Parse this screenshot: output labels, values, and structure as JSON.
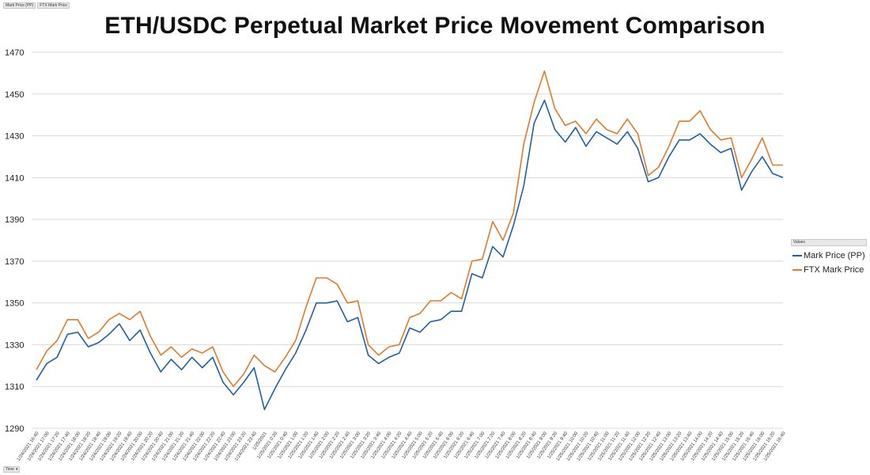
{
  "field_buttons": [
    "Mark Price (PP)",
    "FTX Mark Price"
  ],
  "axis_field_button": "Time",
  "legend_header": "Values",
  "chart_data": {
    "type": "line",
    "title": "ETH/USDC Perpetual Market Price Movement Comparison",
    "xlabel": "",
    "ylabel": "",
    "ylim": [
      1290,
      1470
    ],
    "yticks": [
      1290,
      1310,
      1330,
      1350,
      1370,
      1390,
      1410,
      1430,
      1450,
      1470
    ],
    "grid": true,
    "legend_position": "right",
    "categories": [
      "1/24/2021 16:40",
      "1/24/2021 17:00",
      "1/24/2021 17:20",
      "1/24/2021 17:40",
      "1/24/2021 18:00",
      "1/24/2021 18:20",
      "1/24/2021 18:40",
      "1/24/2021 19:00",
      "1/24/2021 19:20",
      "1/24/2021 19:40",
      "1/24/2021 20:00",
      "1/24/2021 20:20",
      "1/24/2021 20:40",
      "1/24/2021 21:00",
      "1/24/2021 21:20",
      "1/24/2021 21:40",
      "1/24/2021 22:00",
      "1/24/2021 22:20",
      "1/24/2021 22:40",
      "1/24/2021 23:00",
      "1/24/2021 23:20",
      "1/24/2021 23:40",
      "1/25/2021",
      "1/25/2021 0:20",
      "1/25/2021 0:40",
      "1/25/2021 1:00",
      "1/25/2021 1:20",
      "1/25/2021 1:40",
      "1/25/2021 2:00",
      "1/25/2021 2:20",
      "1/25/2021 2:40",
      "1/25/2021 3:00",
      "1/25/2021 3:20",
      "1/25/2021 3:40",
      "1/25/2021 4:00",
      "1/25/2021 4:20",
      "1/25/2021 4:40",
      "1/25/2021 5:00",
      "1/25/2021 5:20",
      "1/25/2021 5:40",
      "1/25/2021 6:00",
      "1/25/2021 6:20",
      "1/25/2021 6:40",
      "1/25/2021 7:00",
      "1/25/2021 7:20",
      "1/25/2021 7:40",
      "1/25/2021 8:00",
      "1/25/2021 8:20",
      "1/25/2021 8:40",
      "1/25/2021 9:00",
      "1/25/2021 9:20",
      "1/25/2021 9:40",
      "1/25/2021 10:00",
      "1/25/2021 10:20",
      "1/25/2021 10:40",
      "1/25/2021 11:00",
      "1/25/2021 11:20",
      "1/25/2021 11:40",
      "1/25/2021 12:00",
      "1/25/2021 12:20",
      "1/25/2021 12:40",
      "1/25/2021 13:00",
      "1/25/2021 13:20",
      "1/25/2021 13:40",
      "1/25/2021 14:00",
      "1/25/2021 14:20",
      "1/25/2021 14:40",
      "1/25/2021 15:00",
      "1/25/2021 15:20",
      "1/25/2021 15:40",
      "1/25/2021 16:00",
      "1/25/2021 16:20",
      "1/25/2021 16:40"
    ],
    "series": [
      {
        "name": "Mark Price (PP)",
        "color": "#1f5fa6",
        "values": [
          1313,
          1321,
          1324,
          1335,
          1336,
          1329,
          1331,
          1335,
          1340,
          1332,
          1337,
          1326,
          1317,
          1323,
          1318,
          1324,
          1319,
          1324,
          1312,
          1306,
          1312,
          1319,
          1299,
          1309,
          1318,
          1326,
          1337,
          1350,
          1350,
          1351,
          1341,
          1343,
          1325,
          1321,
          1324,
          1326,
          1338,
          1336,
          1341,
          1342,
          1346,
          1346,
          1364,
          1362,
          1377,
          1372,
          1387,
          1406,
          1436,
          1447,
          1433,
          1427,
          1434,
          1425,
          1432,
          1429,
          1426,
          1432,
          1424,
          1408,
          1410,
          1420,
          1428,
          1428,
          1431,
          1426,
          1422,
          1424,
          1404,
          1413,
          1420,
          1412,
          1410
        ]
      },
      {
        "name": "FTX Mark Price",
        "color": "#e07a28",
        "values": [
          1318,
          1327,
          1332,
          1342,
          1342,
          1333,
          1336,
          1342,
          1345,
          1342,
          1346,
          1334,
          1325,
          1329,
          1324,
          1328,
          1326,
          1329,
          1317,
          1310,
          1316,
          1325,
          1320,
          1317,
          1324,
          1332,
          1348,
          1362,
          1362,
          1359,
          1350,
          1351,
          1330,
          1325,
          1329,
          1330,
          1343,
          1345,
          1351,
          1351,
          1355,
          1352,
          1370,
          1371,
          1389,
          1380,
          1393,
          1426,
          1446,
          1461,
          1443,
          1435,
          1437,
          1431,
          1438,
          1433,
          1431,
          1438,
          1431,
          1411,
          1415,
          1425,
          1437,
          1437,
          1442,
          1433,
          1428,
          1429,
          1410,
          1419,
          1429,
          1416,
          1416
        ]
      }
    ]
  }
}
